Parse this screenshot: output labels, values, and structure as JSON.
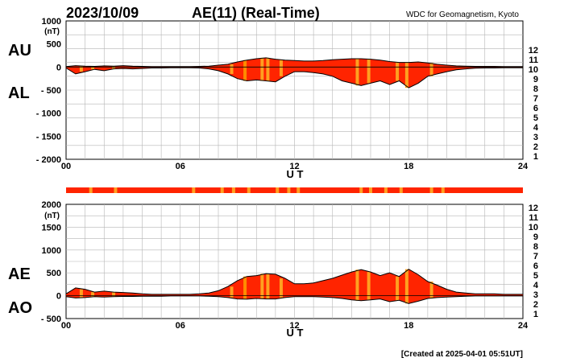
{
  "header": {
    "date": "2023/10/09",
    "title": "AE(11) (Real-Time)",
    "source": "WDC for Geomagnetism, Kyoto"
  },
  "footer": {
    "created": "[Created at 2025-04-01 05:51UT]"
  },
  "legend": {
    "labels": [
      "12",
      "11",
      "10",
      "9",
      "8",
      "7",
      "6",
      "5",
      "4",
      "3",
      "2",
      "1"
    ],
    "colors": [
      "#ff1493",
      "#e00000",
      "#ff8c00",
      "#eeee00",
      "#9acd32",
      "#00ced1",
      "#1e6fff",
      "#4b0082",
      "#cc00cc",
      "#000000",
      "#777777",
      "#cccccc"
    ]
  },
  "chart_data": [
    {
      "type": "area",
      "name": "AU/AL",
      "label_upper": "AU",
      "label_lower": "AL",
      "unit": "(nT)",
      "xlabel": "U T",
      "xlim": [
        0,
        24
      ],
      "ylim": [
        -2000,
        1000
      ],
      "yticks": [
        1000,
        500,
        0,
        -500,
        -1000,
        -1500,
        -2000
      ],
      "ytick_labels": [
        "1000",
        "500",
        "0",
        "- 500",
        "- 1000",
        "- 1500",
        "- 2000"
      ],
      "xticks": [
        0,
        6,
        12,
        18,
        24
      ],
      "xtick_labels": [
        "00",
        "06",
        "12",
        "18",
        "24"
      ],
      "fill_color": "#ff2400",
      "series": [
        {
          "name": "AU",
          "x": [
            0,
            0.5,
            1,
            1.5,
            2,
            2.5,
            3,
            3.5,
            4,
            4.5,
            5,
            5.5,
            6,
            6.5,
            7,
            7.5,
            8,
            8.5,
            9,
            9.5,
            10,
            10.5,
            11,
            11.5,
            12,
            12.5,
            13,
            13.5,
            14,
            14.5,
            15,
            15.5,
            16,
            16.5,
            17,
            17.5,
            18,
            18.5,
            19,
            19.5,
            20,
            20.5,
            21,
            21.5,
            22,
            22.5,
            23,
            23.5,
            24
          ],
          "values": [
            10,
            30,
            20,
            15,
            25,
            20,
            30,
            20,
            15,
            10,
            10,
            10,
            10,
            10,
            15,
            20,
            40,
            60,
            110,
            150,
            180,
            200,
            170,
            150,
            140,
            130,
            130,
            140,
            160,
            170,
            180,
            180,
            170,
            150,
            120,
            100,
            100,
            110,
            90,
            60,
            40,
            25,
            20,
            15,
            15,
            15,
            10,
            10,
            10
          ]
        },
        {
          "name": "AL",
          "x": [
            0,
            0.5,
            1,
            1.5,
            2,
            2.5,
            3,
            3.5,
            4,
            4.5,
            5,
            5.5,
            6,
            6.5,
            7,
            7.5,
            8,
            8.5,
            9,
            9.5,
            10,
            10.5,
            11,
            11.5,
            12,
            12.5,
            13,
            13.5,
            14,
            14.5,
            15,
            15.5,
            16,
            16.5,
            17,
            17.5,
            18,
            18.5,
            19,
            19.5,
            20,
            20.5,
            21,
            21.5,
            22,
            22.5,
            23,
            23.5,
            24
          ],
          "values": [
            -20,
            -150,
            -100,
            -50,
            -80,
            -40,
            -30,
            -40,
            -30,
            -20,
            -20,
            -15,
            -15,
            -15,
            -20,
            -40,
            -80,
            -150,
            -250,
            -300,
            -280,
            -300,
            -320,
            -200,
            -100,
            -100,
            -120,
            -150,
            -200,
            -300,
            -350,
            -400,
            -350,
            -300,
            -380,
            -300,
            -450,
            -350,
            -200,
            -150,
            -100,
            -60,
            -40,
            -25,
            -20,
            -20,
            -15,
            -15,
            -15
          ]
        }
      ]
    },
    {
      "type": "area",
      "name": "AE/AO",
      "label_upper": "AE",
      "label_lower": "AO",
      "unit": "(nT)",
      "xlabel": "U T",
      "xlim": [
        0,
        24
      ],
      "ylim": [
        -500,
        2000
      ],
      "yticks": [
        2000,
        1500,
        1000,
        500,
        0,
        -500
      ],
      "ytick_labels": [
        "2000",
        "1500",
        "1000",
        "500",
        "0",
        "- 500"
      ],
      "xticks": [
        0,
        6,
        12,
        18,
        24
      ],
      "xtick_labels": [
        "00",
        "06",
        "12",
        "18",
        "24"
      ],
      "fill_color": "#ff2400",
      "series": [
        {
          "name": "AE",
          "x": [
            0,
            0.5,
            1,
            1.5,
            2,
            2.5,
            3,
            3.5,
            4,
            4.5,
            5,
            5.5,
            6,
            6.5,
            7,
            7.5,
            8,
            8.5,
            9,
            9.5,
            10,
            10.5,
            11,
            11.5,
            12,
            12.5,
            13,
            13.5,
            14,
            14.5,
            15,
            15.5,
            16,
            16.5,
            17,
            17.5,
            18,
            18.5,
            19,
            19.5,
            20,
            20.5,
            21,
            21.5,
            22,
            22.5,
            23,
            23.5,
            24
          ],
          "values": [
            40,
            170,
            140,
            80,
            100,
            80,
            70,
            60,
            40,
            30,
            30,
            30,
            30,
            30,
            40,
            60,
            110,
            200,
            330,
            420,
            440,
            480,
            470,
            380,
            260,
            260,
            280,
            330,
            380,
            450,
            520,
            570,
            520,
            440,
            500,
            420,
            580,
            460,
            310,
            230,
            140,
            80,
            60,
            40,
            40,
            40,
            30,
            30,
            30
          ]
        },
        {
          "name": "AO",
          "x": [
            0,
            0.5,
            1,
            1.5,
            2,
            2.5,
            3,
            3.5,
            4,
            4.5,
            5,
            5.5,
            6,
            6.5,
            7,
            7.5,
            8,
            8.5,
            9,
            9.5,
            10,
            10.5,
            11,
            11.5,
            12,
            12.5,
            13,
            13.5,
            14,
            14.5,
            15,
            15.5,
            16,
            16.5,
            17,
            17.5,
            18,
            18.5,
            19,
            19.5,
            20,
            20.5,
            21,
            21.5,
            22,
            22.5,
            23,
            23.5,
            24
          ],
          "values": [
            -20,
            -50,
            -40,
            -20,
            -30,
            -20,
            -15,
            -15,
            -10,
            -10,
            -10,
            -5,
            -5,
            -5,
            -5,
            -10,
            -20,
            -40,
            -70,
            -75,
            -60,
            -70,
            -70,
            -40,
            -20,
            -20,
            -20,
            -30,
            -40,
            -60,
            -90,
            -110,
            -90,
            -70,
            -130,
            -100,
            -170,
            -120,
            -60,
            -40,
            -30,
            -20,
            -10,
            -5,
            -5,
            -5,
            -5,
            -5,
            -5
          ]
        }
      ]
    }
  ],
  "station_bar": {
    "base_color": "#ff2400",
    "marker_color": "#ffa020",
    "markers_ut": [
      1.3,
      2.6,
      6.7,
      8.2,
      8.8,
      9.6,
      11.1,
      11.7,
      12.2,
      15.5,
      16.0,
      16.8,
      17.6,
      19.2,
      19.8
    ]
  },
  "stripes_ut": [
    {
      "t": 0.8,
      "c": "#ffa020"
    },
    {
      "t": 1.4,
      "c": "#ffa020"
    },
    {
      "t": 2.5,
      "c": "#ffa020"
    },
    {
      "t": 8.7,
      "c": "#ffa020"
    },
    {
      "t": 9.4,
      "c": "#ff8c00"
    },
    {
      "t": 10.3,
      "c": "#ffa020"
    },
    {
      "t": 10.6,
      "c": "#ffa020"
    },
    {
      "t": 11.3,
      "c": "#ffa020"
    },
    {
      "t": 15.3,
      "c": "#ffa020"
    },
    {
      "t": 15.9,
      "c": "#ffa020"
    },
    {
      "t": 17.4,
      "c": "#ffa020"
    },
    {
      "t": 17.9,
      "c": "#ffa020"
    },
    {
      "t": 19.2,
      "c": "#ffa020"
    }
  ]
}
